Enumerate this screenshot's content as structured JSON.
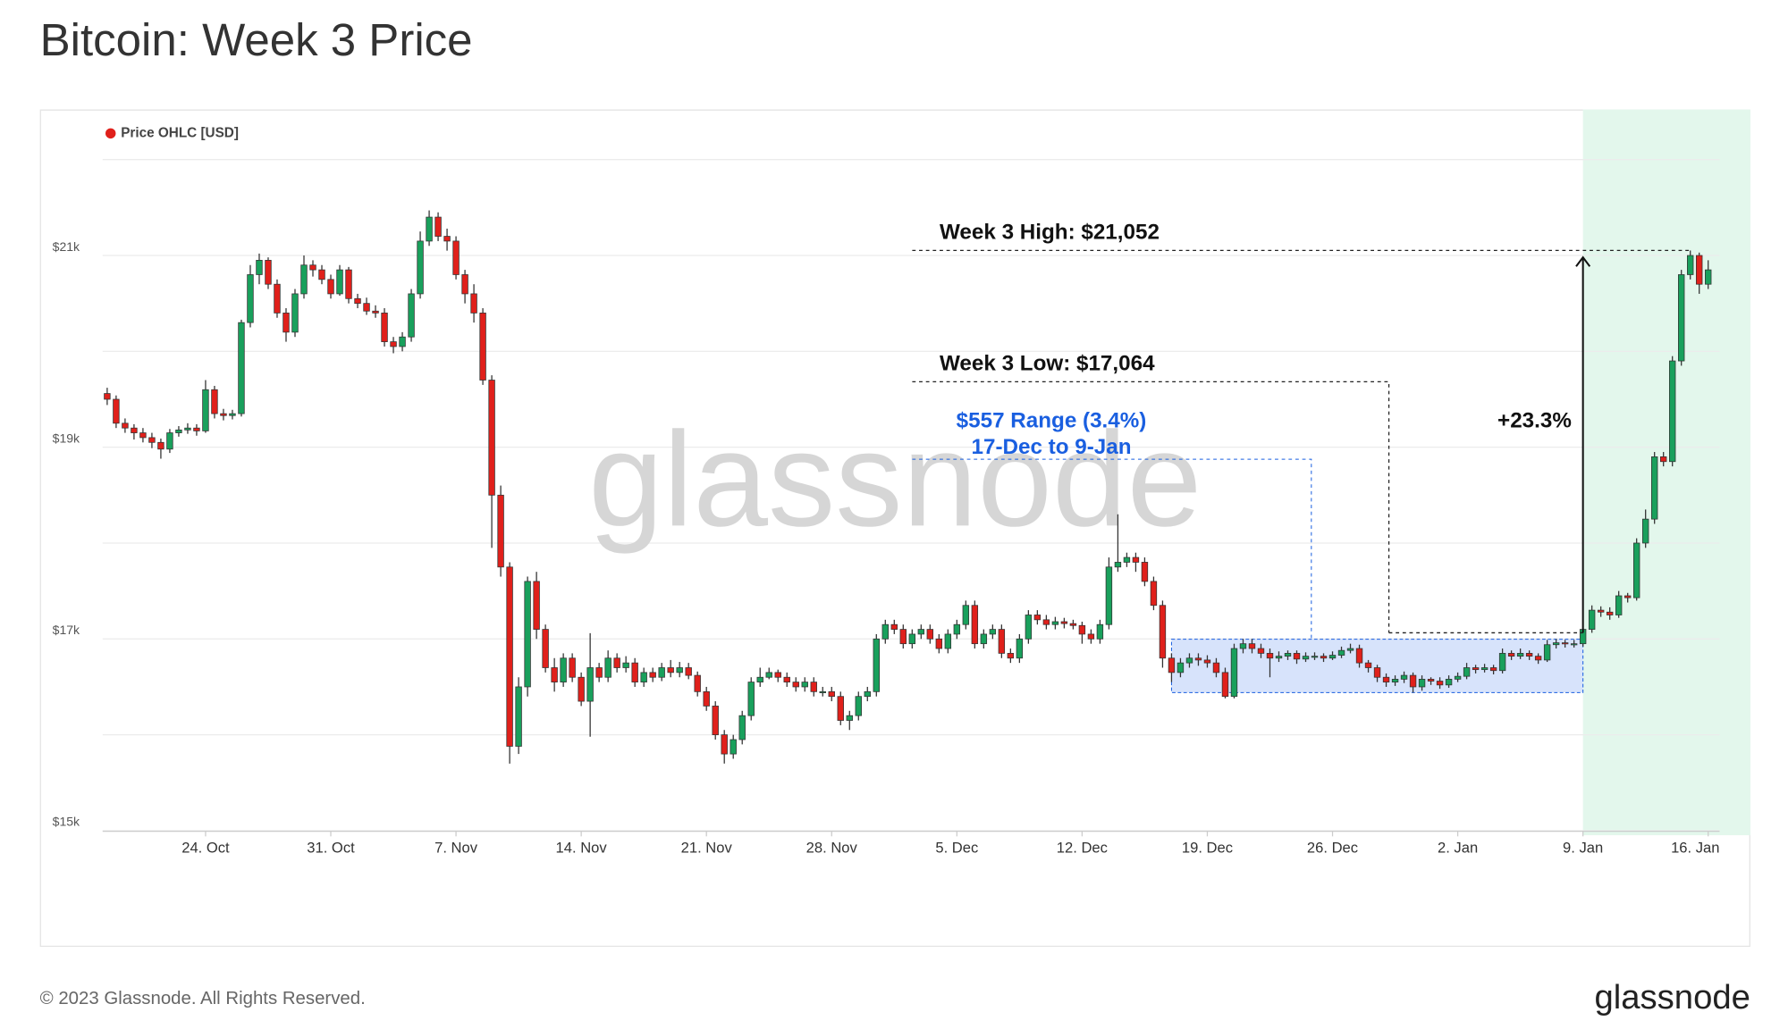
{
  "title": "Bitcoin: Week 3 Price",
  "watermark": "glassnode",
  "footer": {
    "copyright": "© 2023 Glassnode. All Rights Reserved.",
    "brand": "glassnode"
  },
  "chart_data": {
    "type": "candlestick",
    "grid": true,
    "legend": "top-left",
    "series": [
      {
        "name": "Price OHLC [USD]",
        "color": "#e0201b",
        "up_color": "#19a05c",
        "down_color": "#e0201b",
        "open": [
          19560,
          19500,
          19250,
          19200,
          19150,
          19100,
          19050,
          18980,
          19150,
          19180,
          19200,
          19170,
          19600,
          19350,
          19330,
          19350,
          20300,
          20800,
          20950,
          20700,
          20400,
          20200,
          20600,
          20900,
          20850,
          20750,
          20600,
          20850,
          20550,
          20500,
          20420,
          20400,
          20100,
          20050,
          20150,
          20600,
          21150,
          21400,
          21200,
          21150,
          20800,
          20600,
          20400,
          19700,
          18500,
          17750,
          15880,
          16500,
          17600,
          17100,
          16700,
          16550,
          16800,
          16600,
          16350,
          16700,
          16600,
          16800,
          16700,
          16750,
          16550,
          16650,
          16600,
          16700,
          16650,
          16700,
          16620,
          16450,
          16300,
          16000,
          15800,
          15950,
          16200,
          16550,
          16600,
          16650,
          16600,
          16550,
          16500,
          16550,
          16450,
          16450,
          16400,
          16150,
          16200,
          16400,
          16450,
          17000,
          17150,
          17100,
          16950,
          17050,
          17100,
          17000,
          16900,
          17050,
          17150,
          17350,
          16950,
          17050,
          17100,
          16850,
          16800,
          17000,
          17250,
          17200,
          17150,
          17180,
          17160,
          17140,
          17050,
          17000,
          17150,
          17750,
          17800,
          17850,
          17800,
          17600,
          17350,
          16800,
          16650,
          16750,
          16800,
          16780,
          16750,
          16650,
          16400,
          16900,
          16950,
          16900,
          16850,
          16800,
          16820,
          16850,
          16790,
          16820,
          16820,
          16800,
          16830,
          16880,
          16900,
          16750,
          16700,
          16600,
          16550,
          16580,
          16620,
          16500,
          16580,
          16560,
          16520,
          16580,
          16610,
          16700,
          16680,
          16700,
          16670,
          16850,
          16820,
          16850,
          16820,
          16780,
          16940,
          16960,
          16950,
          16950,
          17100,
          17300,
          17280,
          17250,
          17450,
          17430,
          18000,
          18250,
          18900,
          18850,
          19900,
          20800,
          21000,
          20700
        ],
        "high": [
          19620,
          19540,
          19300,
          19240,
          19200,
          19150,
          19090,
          19190,
          19220,
          19250,
          19240,
          19700,
          19640,
          19400,
          19390,
          20330,
          20900,
          21020,
          20980,
          20750,
          20450,
          20650,
          21000,
          20950,
          20900,
          20800,
          20900,
          20880,
          20600,
          20560,
          20480,
          20450,
          20150,
          20200,
          20650,
          21250,
          21470,
          21450,
          21280,
          21200,
          20850,
          20700,
          20450,
          19750,
          18600,
          17800,
          16600,
          17650,
          17700,
          17150,
          16800,
          16850,
          16850,
          16650,
          17060,
          16750,
          16880,
          16850,
          16820,
          16800,
          16700,
          16700,
          16750,
          16780,
          16760,
          16750,
          16660,
          16500,
          16350,
          16050,
          16000,
          16250,
          16600,
          16700,
          16700,
          16680,
          16650,
          16600,
          16600,
          16600,
          16500,
          16500,
          16450,
          16250,
          16450,
          16500,
          17050,
          17200,
          17200,
          17150,
          17100,
          17150,
          17150,
          17050,
          17100,
          17200,
          17400,
          17400,
          17100,
          17150,
          17150,
          16900,
          17050,
          17300,
          17300,
          17250,
          17230,
          17220,
          17200,
          17180,
          17100,
          17200,
          17850,
          18300,
          17900,
          17900,
          17850,
          17650,
          17400,
          16850,
          16800,
          16850,
          16850,
          16830,
          16800,
          16700,
          16950,
          17000,
          17000,
          16950,
          16900,
          16870,
          16880,
          16880,
          16860,
          16860,
          16850,
          16870,
          16920,
          16950,
          16940,
          16780,
          16730,
          16640,
          16620,
          16660,
          16650,
          16620,
          16600,
          16600,
          16620,
          16650,
          16750,
          16730,
          16740,
          16730,
          16900,
          16880,
          16900,
          16880,
          16850,
          16990,
          17000,
          16990,
          16990,
          17150,
          17350,
          17340,
          17330,
          17500,
          17480,
          18050,
          18350,
          18950,
          18950,
          19950,
          20850,
          21052,
          21030,
          20950
        ],
        "low": [
          19440,
          19200,
          19150,
          19080,
          19050,
          18990,
          18880,
          18940,
          19110,
          19140,
          19120,
          19150,
          19300,
          19280,
          19290,
          19320,
          20250,
          20700,
          20650,
          20350,
          20100,
          20150,
          20550,
          20780,
          20700,
          20550,
          20580,
          20500,
          20450,
          20380,
          20350,
          20050,
          19980,
          20000,
          20100,
          20550,
          21100,
          21150,
          21050,
          20750,
          20500,
          20300,
          19650,
          17950,
          17650,
          15700,
          15800,
          16400,
          17000,
          16650,
          16450,
          16500,
          16550,
          16300,
          15980,
          16550,
          16550,
          16650,
          16650,
          16500,
          16500,
          16550,
          16560,
          16600,
          16600,
          16580,
          16400,
          16250,
          15950,
          15700,
          15750,
          15900,
          16150,
          16500,
          16580,
          16550,
          16500,
          16450,
          16450,
          16400,
          16400,
          16350,
          16100,
          16050,
          16150,
          16350,
          16400,
          16950,
          17050,
          16900,
          16900,
          17000,
          16950,
          16850,
          16850,
          17000,
          17100,
          16900,
          16900,
          17000,
          16800,
          16750,
          16750,
          16950,
          17150,
          17100,
          17100,
          17110,
          17100,
          16950,
          16950,
          16950,
          17100,
          17700,
          17750,
          17700,
          17550,
          17300,
          16700,
          16550,
          16600,
          16700,
          16720,
          16700,
          16600,
          16380,
          16380,
          16850,
          16850,
          16800,
          16600,
          16760,
          16780,
          16740,
          16760,
          16780,
          16760,
          16780,
          16800,
          16850,
          16700,
          16650,
          16550,
          16500,
          16510,
          16540,
          16440,
          16460,
          16520,
          16480,
          16490,
          16550,
          16580,
          16640,
          16650,
          16630,
          16640,
          16780,
          16790,
          16780,
          16740,
          16760,
          16900,
          16910,
          16910,
          16920,
          17064,
          17230,
          17200,
          17220,
          17380,
          17400,
          17950,
          18200,
          18800,
          18800,
          19850,
          20750,
          20600,
          20650
        ],
        "close": [
          19500,
          19250,
          19200,
          19150,
          19100,
          19050,
          18980,
          19150,
          19180,
          19200,
          19170,
          19600,
          19350,
          19330,
          19350,
          20300,
          20800,
          20950,
          20700,
          20400,
          20200,
          20600,
          20900,
          20850,
          20750,
          20600,
          20850,
          20550,
          20500,
          20420,
          20400,
          20100,
          20050,
          20150,
          20600,
          21150,
          21400,
          21200,
          21150,
          20800,
          20600,
          20400,
          19700,
          18500,
          17750,
          15880,
          16500,
          17600,
          17100,
          16700,
          16550,
          16800,
          16600,
          16350,
          16700,
          16600,
          16800,
          16700,
          16750,
          16550,
          16650,
          16600,
          16700,
          16650,
          16700,
          16620,
          16450,
          16300,
          16000,
          15800,
          15950,
          16200,
          16550,
          16600,
          16650,
          16600,
          16550,
          16500,
          16550,
          16450,
          16450,
          16400,
          16150,
          16200,
          16400,
          16450,
          17000,
          17150,
          17100,
          16950,
          17050,
          17100,
          17000,
          16900,
          17050,
          17150,
          17350,
          16950,
          17050,
          17100,
          16850,
          16800,
          17000,
          17250,
          17200,
          17150,
          17180,
          17160,
          17140,
          17050,
          17000,
          17150,
          17750,
          17800,
          17850,
          17800,
          17600,
          17350,
          16800,
          16650,
          16750,
          16800,
          16780,
          16750,
          16650,
          16400,
          16900,
          16950,
          16900,
          16850,
          16800,
          16820,
          16850,
          16790,
          16820,
          16820,
          16800,
          16830,
          16880,
          16900,
          16750,
          16700,
          16600,
          16550,
          16580,
          16620,
          16500,
          16580,
          16560,
          16520,
          16580,
          16610,
          16700,
          16680,
          16700,
          16670,
          16850,
          16820,
          16850,
          16820,
          16780,
          16940,
          16960,
          16950,
          16950,
          17100,
          17300,
          17280,
          17250,
          17450,
          17430,
          18000,
          18250,
          18900,
          18850,
          19900,
          20800,
          21000,
          20700,
          20850
        ]
      }
    ],
    "x": [
      "Oct 18 12:00",
      "Oct 19 00:00",
      "Oct 19 12:00",
      "Oct 20 00:00",
      "Oct 20 12:00",
      "Oct 21 00:00",
      "Oct 21 12:00",
      "Oct 22 00:00",
      "Oct 22 12:00",
      "Oct 23 00:00",
      "Oct 23 12:00",
      "Oct 24 00:00",
      "Oct 24 12:00",
      "Oct 25 00:00",
      "Oct 25 12:00",
      "Oct 26 00:00",
      "Oct 26 12:00",
      "Oct 27 00:00",
      "Oct 27 12:00",
      "Oct 28 00:00",
      "Oct 28 12:00",
      "Oct 29 00:00",
      "Oct 29 12:00",
      "Oct 30 00:00",
      "Oct 30 12:00",
      "Oct 31 00:00",
      "Oct 31 12:00",
      "Nov 1 00:00",
      "Nov 1 12:00",
      "Nov 2 00:00",
      "Nov 2 12:00",
      "Nov 3 00:00",
      "Nov 3 12:00",
      "Nov 4 00:00",
      "Nov 4 12:00",
      "Nov 5 00:00",
      "Nov 5 12:00",
      "Nov 6 00:00",
      "Nov 6 12:00",
      "Nov 7 00:00",
      "Nov 7 12:00",
      "Nov 8 00:00",
      "Nov 8 12:00",
      "Nov 9 00:00",
      "Nov 9 12:00",
      "Nov 10 00:00",
      "Nov 10 12:00",
      "Nov 11 00:00",
      "Nov 11 12:00",
      "Nov 12 00:00",
      "Nov 12 12:00",
      "Nov 13 00:00",
      "Nov 13 12:00",
      "Nov 14 00:00",
      "Nov 14 12:00",
      "Nov 15 00:00",
      "Nov 15 12:00",
      "Nov 16 00:00",
      "Nov 16 12:00",
      "Nov 17 00:00",
      "Nov 17 12:00",
      "Nov 18 00:00",
      "Nov 18 12:00",
      "Nov 19 00:00",
      "Nov 19 12:00",
      "Nov 20 00:00",
      "Nov 20 12:00",
      "Nov 21 00:00",
      "Nov 21 12:00",
      "Nov 22 00:00",
      "Nov 22 12:00",
      "Nov 23 00:00",
      "Nov 23 12:00",
      "Nov 24 00:00",
      "Nov 24 12:00",
      "Nov 25 00:00",
      "Nov 25 12:00",
      "Nov 26 00:00",
      "Nov 26 12:00",
      "Nov 27 00:00",
      "Nov 27 12:00",
      "Nov 28 00:00",
      "Nov 28 12:00",
      "Nov 29 00:00",
      "Nov 29 12:00",
      "Nov 30 00:00",
      "Nov 30 12:00",
      "Dec 1 00:00",
      "Dec 1 12:00",
      "Dec 2 00:00",
      "Dec 2 12:00",
      "Dec 3 00:00",
      "Dec 3 12:00",
      "Dec 4 00:00",
      "Dec 4 12:00",
      "Dec 5 00:00",
      "Dec 5 12:00",
      "Dec 6 00:00",
      "Dec 6 12:00",
      "Dec 7 00:00",
      "Dec 7 12:00",
      "Dec 8 00:00",
      "Dec 8 12:00",
      "Dec 9 00:00",
      "Dec 9 12:00",
      "Dec 10 00:00",
      "Dec 10 12:00",
      "Dec 11 00:00",
      "Dec 11 12:00",
      "Dec 12 00:00",
      "Dec 12 12:00",
      "Dec 13 00:00",
      "Dec 13 12:00",
      "Dec 14 00:00",
      "Dec 14 12:00",
      "Dec 15 00:00",
      "Dec 15 12:00",
      "Dec 16 00:00",
      "Dec 16 12:00",
      "Dec 17 00:00",
      "Dec 17 12:00",
      "Dec 18 00:00",
      "Dec 18 12:00",
      "Dec 19 00:00",
      "Dec 19 12:00",
      "Dec 20 00:00",
      "Dec 20 12:00",
      "Dec 21 00:00",
      "Dec 21 12:00",
      "Dec 22 00:00",
      "Dec 22 12:00",
      "Dec 23 00:00",
      "Dec 23 12:00",
      "Dec 24 00:00",
      "Dec 24 12:00",
      "Dec 25 00:00",
      "Dec 25 12:00",
      "Dec 26 00:00",
      "Dec 26 12:00",
      "Dec 27 00:00",
      "Dec 27 12:00",
      "Dec 28 00:00",
      "Dec 28 12:00",
      "Dec 29 00:00",
      "Dec 29 12:00",
      "Dec 30 00:00",
      "Dec 30 12:00",
      "Dec 31 00:00",
      "Dec 31 12:00",
      "Jan 1 00:00",
      "Jan 1 12:00",
      "Jan 2 00:00",
      "Jan 2 12:00",
      "Jan 3 00:00",
      "Jan 3 12:00",
      "Jan 4 00:00",
      "Jan 4 12:00",
      "Jan 5 00:00",
      "Jan 5 12:00",
      "Jan 6 00:00",
      "Jan 6 12:00",
      "Jan 7 00:00",
      "Jan 7 12:00",
      "Jan 8 00:00",
      "Jan 8 12:00",
      "Jan 9 00:00",
      "Jan 9 12:00",
      "Jan 10 00:00",
      "Jan 10 12:00",
      "Jan 11 00:00",
      "Jan 11 12:00",
      "Jan 12 00:00",
      "Jan 12 12:00",
      "Jan 13 00:00",
      "Jan 13 12:00",
      "Jan 14 00:00",
      "Jan 14 12:00",
      "Jan 15 00:00",
      "Jan 15 12:00",
      "Jan 16 00:00"
    ],
    "xticks": [
      {
        "value": "Oct 24 00:00",
        "label": "24. Oct"
      },
      {
        "value": "Oct 31 00:00",
        "label": "31. Oct"
      },
      {
        "value": "Nov 7 00:00",
        "label": "7. Nov"
      },
      {
        "value": "Nov 14 00:00",
        "label": "14. Nov"
      },
      {
        "value": "Nov 21 00:00",
        "label": "21. Nov"
      },
      {
        "value": "Nov 28 00:00",
        "label": "28. Nov"
      },
      {
        "value": "Dec 5 00:00",
        "label": "5. Dec"
      },
      {
        "value": "Dec 12 00:00",
        "label": "12. Dec"
      },
      {
        "value": "Dec 19 00:00",
        "label": "19. Dec"
      },
      {
        "value": "Dec 26 00:00",
        "label": "26. Dec"
      },
      {
        "value": "Jan 2 00:00",
        "label": "2. Jan"
      },
      {
        "value": "Jan 9 00:00",
        "label": "9. Jan"
      },
      {
        "value": "Jan 16 00:00",
        "label": "16. Jan"
      }
    ],
    "ylim": [
      15000,
      22000
    ],
    "yticks": [
      {
        "value": 15000,
        "label": "$15k"
      },
      {
        "value": 17000,
        "label": "$17k"
      },
      {
        "value": 19000,
        "label": "$19k"
      },
      {
        "value": 21000,
        "label": "$21k"
      }
    ],
    "minor_yticks": [
      16000,
      18000,
      20000,
      22000
    ],
    "highlight": {
      "start": "Jan 9 00:00",
      "color": "#e3f7ec"
    },
    "range_box": {
      "label": "$557 Range (3.4%)",
      "sublabel": "17-Dec to 9-Jan",
      "start": "Dec 17 00:00",
      "end": "Jan 9 00:00",
      "low": 16440,
      "high": 16997,
      "color": "#1a5fe0",
      "fill": "#d7e3fb"
    },
    "week_high": {
      "label": "Week 3 High: $21,052",
      "value": 21052
    },
    "week_low": {
      "label": "Week 3 Low: $17,064",
      "value": 17064
    },
    "change": {
      "label": "+23.3%",
      "from": 17064,
      "to": 21052
    }
  }
}
